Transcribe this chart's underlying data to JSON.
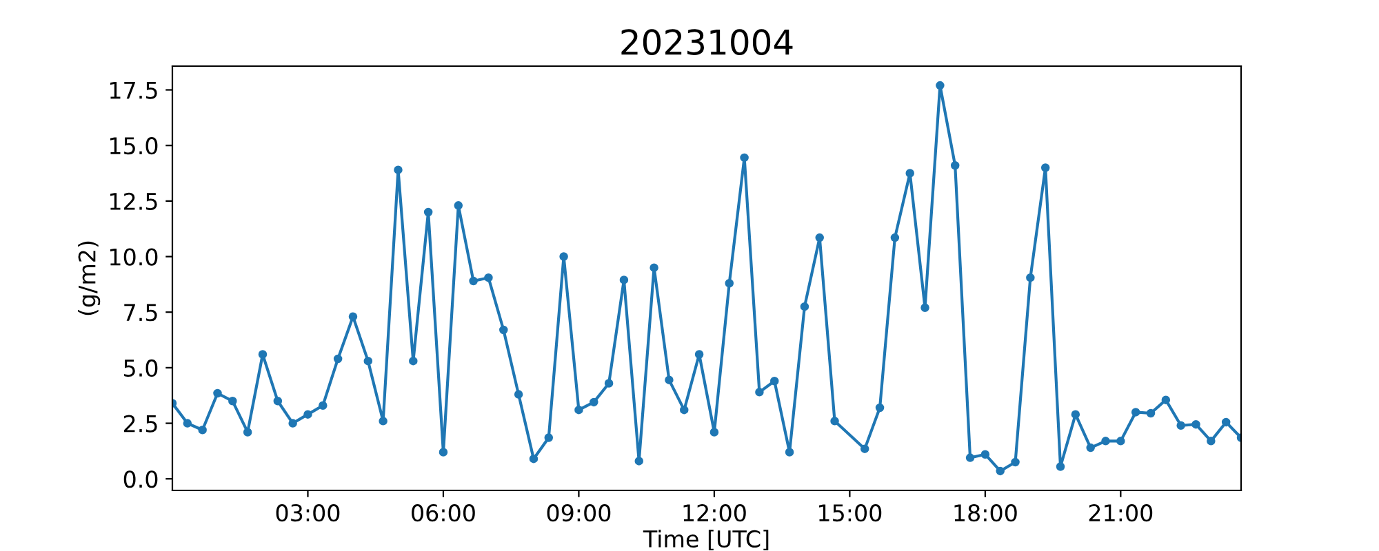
{
  "chart_data": {
    "type": "line",
    "title": "20231004",
    "xlabel": "Time [UTC]",
    "ylabel": "(g/m2)",
    "x": [
      "2023-10-04T00:00",
      "2023-10-04T00:20",
      "2023-10-04T00:40",
      "2023-10-04T01:00",
      "2023-10-04T01:20",
      "2023-10-04T01:40",
      "2023-10-04T02:00",
      "2023-10-04T02:20",
      "2023-10-04T02:40",
      "2023-10-04T03:00",
      "2023-10-04T03:20",
      "2023-10-04T03:40",
      "2023-10-04T04:00",
      "2023-10-04T04:20",
      "2023-10-04T04:40",
      "2023-10-04T05:00",
      "2023-10-04T05:20",
      "2023-10-04T05:40",
      "2023-10-04T06:00",
      "2023-10-04T06:20",
      "2023-10-04T06:40",
      "2023-10-04T07:00",
      "2023-10-04T07:20",
      "2023-10-04T07:40",
      "2023-10-04T08:00",
      "2023-10-04T08:20",
      "2023-10-04T08:40",
      "2023-10-04T09:00",
      "2023-10-04T09:20",
      "2023-10-04T09:40",
      "2023-10-04T10:00",
      "2023-10-04T10:20",
      "2023-10-04T10:40",
      "2023-10-04T11:00",
      "2023-10-04T11:20",
      "2023-10-04T11:40",
      "2023-10-04T12:00",
      "2023-10-04T12:20",
      "2023-10-04T12:40",
      "2023-10-04T13:00",
      "2023-10-04T13:20",
      "2023-10-04T13:40",
      "2023-10-04T14:00",
      "2023-10-04T14:20",
      "2023-10-04T14:40",
      "2023-10-04T15:20",
      "2023-10-04T15:40",
      "2023-10-04T16:00",
      "2023-10-04T16:20",
      "2023-10-04T16:40",
      "2023-10-04T17:00",
      "2023-10-04T17:20",
      "2023-10-04T17:40",
      "2023-10-04T18:00",
      "2023-10-04T18:20",
      "2023-10-04T18:40",
      "2023-10-04T19:00",
      "2023-10-04T19:20",
      "2023-10-04T19:40",
      "2023-10-04T20:00",
      "2023-10-04T20:20",
      "2023-10-04T20:40",
      "2023-10-04T21:00",
      "2023-10-04T21:20",
      "2023-10-04T21:40",
      "2023-10-04T22:00",
      "2023-10-04T22:20",
      "2023-10-04T22:40",
      "2023-10-04T23:00",
      "2023-10-04T23:20",
      "2023-10-04T23:40"
    ],
    "series": [
      {
        "color": "#1f77b4",
        "values": [
          3.4,
          2.5,
          2.2,
          3.85,
          3.5,
          2.1,
          5.6,
          3.5,
          2.5,
          2.9,
          3.3,
          5.4,
          7.3,
          5.3,
          2.6,
          13.9,
          5.3,
          12.0,
          1.2,
          12.3,
          8.9,
          9.05,
          6.7,
          3.8,
          0.9,
          1.85,
          10.0,
          3.1,
          3.45,
          4.3,
          8.95,
          0.8,
          9.5,
          4.45,
          3.1,
          5.6,
          2.1,
          8.8,
          14.45,
          3.9,
          4.4,
          1.2,
          7.75,
          10.85,
          2.6,
          1.35,
          3.2,
          10.85,
          13.75,
          7.7,
          17.7,
          14.1,
          0.95,
          1.1,
          0.35,
          0.75,
          9.05,
          14.0,
          0.55,
          2.9,
          1.4,
          1.7,
          1.7,
          3.0,
          2.95,
          3.55,
          2.4,
          2.45,
          1.7,
          2.55,
          1.85
        ]
      }
    ],
    "xlim": [
      "2023-10-04T00:00",
      "2023-10-04T23:40"
    ],
    "xticks": [
      {
        "value": "2023-10-04T03:00",
        "label": "03:00"
      },
      {
        "value": "2023-10-04T06:00",
        "label": "06:00"
      },
      {
        "value": "2023-10-04T09:00",
        "label": "09:00"
      },
      {
        "value": "2023-10-04T12:00",
        "label": "12:00"
      },
      {
        "value": "2023-10-04T15:00",
        "label": "15:00"
      },
      {
        "value": "2023-10-04T18:00",
        "label": "18:00"
      },
      {
        "value": "2023-10-04T21:00",
        "label": "21:00"
      }
    ],
    "ylim": [
      -0.52,
      18.57
    ],
    "yticks": [
      {
        "value": 0,
        "label": "0.0"
      },
      {
        "value": 2.5,
        "label": "2.5"
      },
      {
        "value": 5,
        "label": "5.0"
      },
      {
        "value": 7.5,
        "label": "7.5"
      },
      {
        "value": 10,
        "label": "10.0"
      },
      {
        "value": 12.5,
        "label": "12.5"
      },
      {
        "value": 15,
        "label": "15.0"
      },
      {
        "value": 17.5,
        "label": "17.5"
      }
    ],
    "marker": "circle",
    "line_style": "solid",
    "grid": false
  }
}
